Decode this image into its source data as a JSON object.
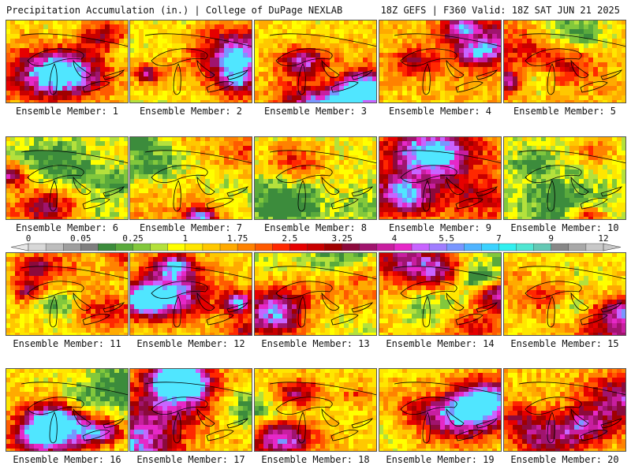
{
  "header": {
    "left_title": "Precipitation Accumulation (in.) | College of DuPage NEXLAB",
    "right_title": "18Z GEFS | F360 Valid: 18Z SAT JUN 21 2025"
  },
  "panels": [
    {
      "label": "Ensemble Member: 1",
      "seed": 11,
      "bias": 0.55
    },
    {
      "label": "Ensemble Member: 2",
      "seed": 23,
      "bias": 0.45
    },
    {
      "label": "Ensemble Member: 3",
      "seed": 37,
      "bias": 0.5
    },
    {
      "label": "Ensemble Member: 4",
      "seed": 41,
      "bias": 0.6
    },
    {
      "label": "Ensemble Member: 5",
      "seed": 53,
      "bias": 0.62
    },
    {
      "label": "Ensemble Member: 6",
      "seed": 67,
      "bias": 0.45
    },
    {
      "label": "Ensemble Member: 7",
      "seed": 71,
      "bias": 0.62
    },
    {
      "label": "Ensemble Member: 8",
      "seed": 83,
      "bias": 0.45
    },
    {
      "label": "Ensemble Member: 9",
      "seed": 97,
      "bias": 0.65
    },
    {
      "label": "Ensemble Member: 10",
      "seed": 101,
      "bias": 0.4
    },
    {
      "label": "Ensemble Member: 11",
      "seed": 113,
      "bias": 0.5
    },
    {
      "label": "Ensemble Member: 12",
      "seed": 127,
      "bias": 0.52
    },
    {
      "label": "Ensemble Member: 13",
      "seed": 131,
      "bias": 0.4
    },
    {
      "label": "Ensemble Member: 14",
      "seed": 149,
      "bias": 0.6
    },
    {
      "label": "Ensemble Member: 15",
      "seed": 151,
      "bias": 0.5
    },
    {
      "label": "Ensemble Member: 16",
      "seed": 163,
      "bias": 0.48
    },
    {
      "label": "Ensemble Member: 17",
      "seed": 173,
      "bias": 0.55
    },
    {
      "label": "Ensemble Member: 18",
      "seed": 181,
      "bias": 0.52
    },
    {
      "label": "Ensemble Member: 19",
      "seed": 191,
      "bias": 0.5
    },
    {
      "label": "Ensemble Member: 20",
      "seed": 199,
      "bias": 0.55
    }
  ],
  "colorbar": {
    "labels": [
      "0",
      "0.05",
      "0.25",
      "1",
      "1.75",
      "2.5",
      "3.25",
      "4",
      "5.5",
      "7",
      "9",
      "12"
    ],
    "colors": [
      "#d8d8d8",
      "#bdbdbd",
      "#9e9e9e",
      "#7f7f7f",
      "#3c8c3c",
      "#5aaa3c",
      "#82c83c",
      "#b4e13c",
      "#ffff00",
      "#ffe600",
      "#ffc800",
      "#ffaa00",
      "#ff8200",
      "#ff5a00",
      "#ff2800",
      "#e60000",
      "#c80000",
      "#a00000",
      "#8c0a3c",
      "#a0146e",
      "#c81ea0",
      "#e628c8",
      "#c864ff",
      "#a07dff",
      "#7896ff",
      "#50b4ff",
      "#3cd2ff",
      "#32f0f0",
      "#50e6d2",
      "#64c8b4",
      "#888888",
      "#a8a8a8",
      "#c8c8c8"
    ]
  }
}
